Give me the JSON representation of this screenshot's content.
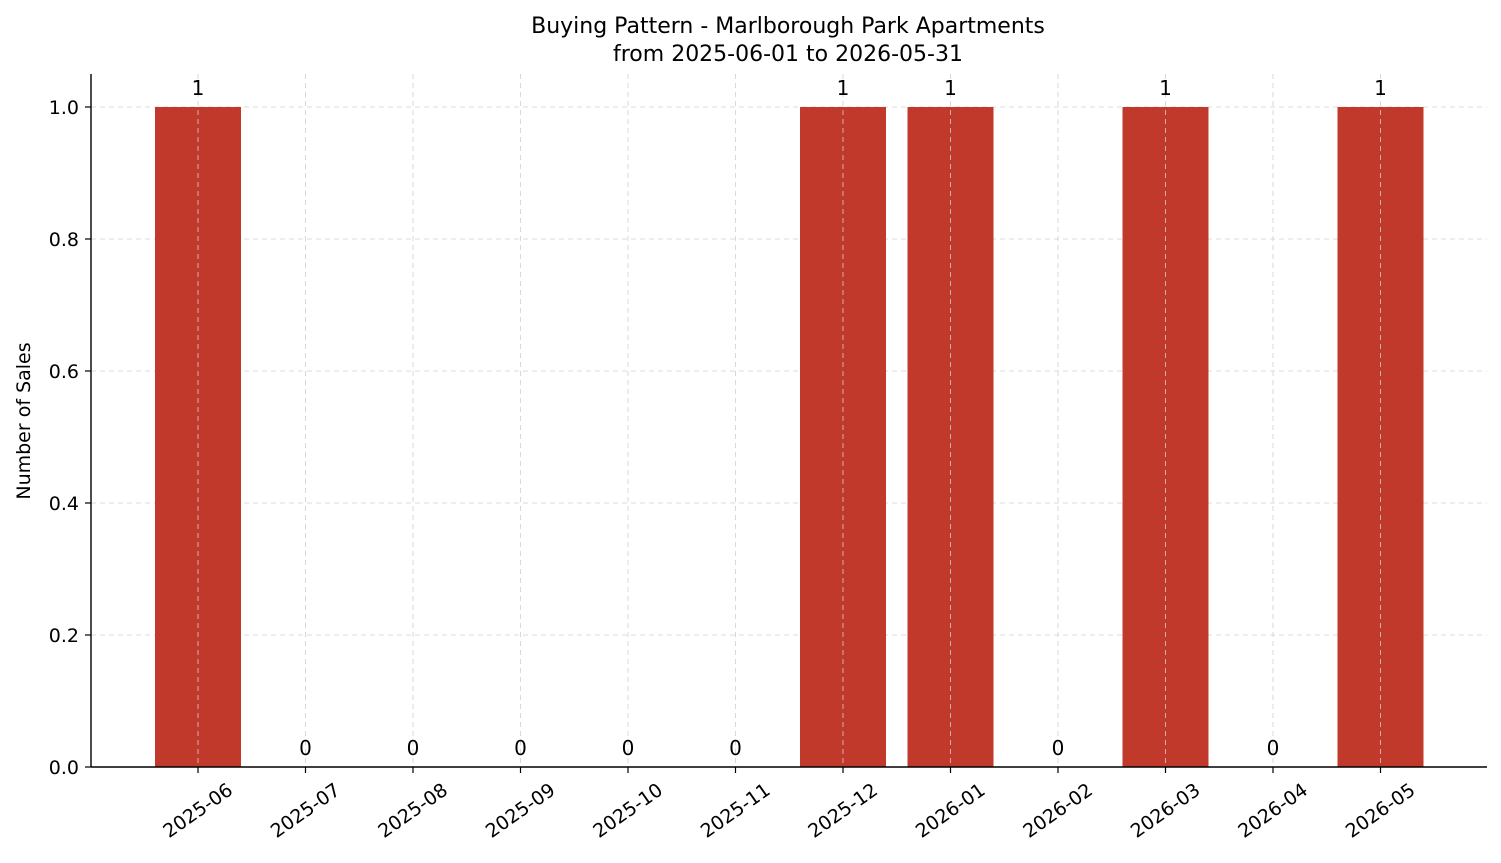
{
  "chart_data": {
    "type": "bar",
    "title": "Buying Pattern - Marlborough Park Apartments",
    "subtitle": "from 2025-06-01 to 2026-05-31",
    "xlabel": "",
    "ylabel": "Number of Sales",
    "categories": [
      "2025-06",
      "2025-07",
      "2025-08",
      "2025-09",
      "2025-10",
      "2025-11",
      "2025-12",
      "2026-01",
      "2026-02",
      "2026-03",
      "2026-04",
      "2026-05"
    ],
    "values": [
      1,
      0,
      0,
      0,
      0,
      0,
      1,
      1,
      0,
      1,
      0,
      1
    ],
    "data_labels": [
      "1",
      "0",
      "0",
      "0",
      "0",
      "0",
      "1",
      "1",
      "0",
      "1",
      "0",
      "1"
    ],
    "ylim": [
      0,
      1.05
    ],
    "yticks": [
      0.0,
      0.2,
      0.4,
      0.6,
      0.8,
      1.0
    ],
    "ytick_labels": [
      "0.0",
      "0.2",
      "0.4",
      "0.6",
      "0.8",
      "1.0"
    ],
    "grid": true,
    "bar_color": "#c0392b"
  }
}
